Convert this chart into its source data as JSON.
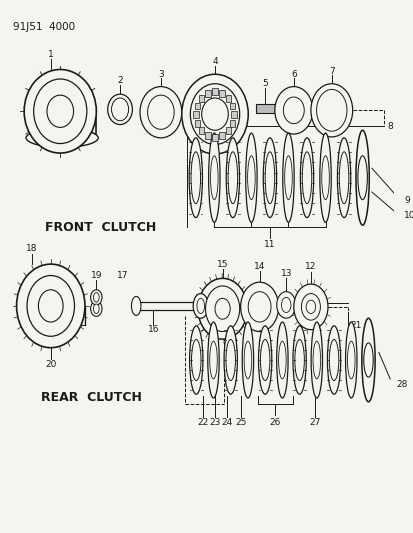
{
  "title": "91J51  4000",
  "front_clutch_label": "FRONT  CLUTCH",
  "rear_clutch_label": "REAR  CLUTCH",
  "bg_color": "#f5f5f0",
  "line_color": "#1a1a1a",
  "text_color": "#1a1a1a",
  "fig_width": 4.14,
  "fig_height": 5.33,
  "dpi": 100
}
